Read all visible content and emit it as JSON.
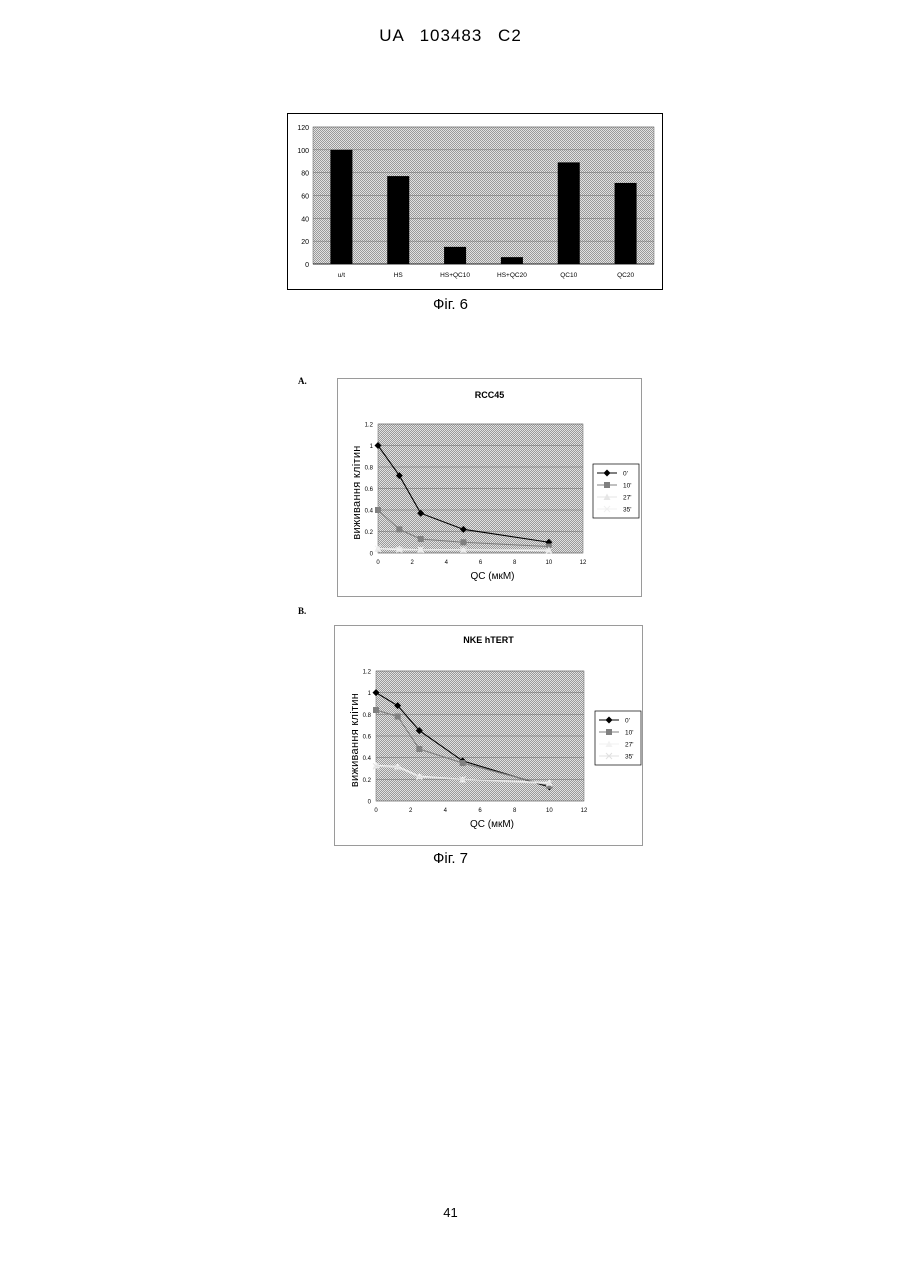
{
  "header": {
    "text": "UA   103483   C2"
  },
  "fig6": {
    "caption": "Фіг. 6"
  },
  "fig7": {
    "caption": "Фіг. 7",
    "panel_a_label": "A.",
    "panel_b_label": "B."
  },
  "footer": {
    "page_number": "41"
  },
  "chart_data": [
    {
      "type": "bar",
      "title": "",
      "xlabel": "",
      "ylabel": "",
      "categories": [
        "u/t",
        "HS",
        "HS+QC10",
        "HS+QC20",
        "QC10",
        "QC20"
      ],
      "values": [
        100,
        77,
        15,
        6,
        89,
        71
      ],
      "ylim": [
        0,
        120
      ],
      "yticks": [
        0,
        20,
        40,
        60,
        80,
        100,
        120
      ],
      "grid": true,
      "colors": {
        "bar": "#000000",
        "plot_bg": "#cfcfcf"
      }
    },
    {
      "type": "line",
      "title": "RCC45",
      "xlabel": "QC (мкМ)",
      "ylabel": "виживання клітин",
      "x": [
        0,
        1.25,
        2.5,
        5,
        10
      ],
      "xlim": [
        0,
        12
      ],
      "xticks": [
        0,
        2,
        4,
        6,
        8,
        10,
        12
      ],
      "ylim": [
        0,
        1.2
      ],
      "yticks": [
        0,
        0.2,
        0.4,
        0.6,
        0.8,
        1,
        1.2
      ],
      "grid": true,
      "legend_position": "right",
      "series": [
        {
          "name": "0'",
          "values": [
            1.0,
            0.72,
            0.37,
            0.22,
            0.1
          ],
          "color": "#000000",
          "marker": "diamond"
        },
        {
          "name": "10'",
          "values": [
            0.4,
            0.22,
            0.13,
            0.1,
            0.06
          ],
          "color": "#808080",
          "marker": "square"
        },
        {
          "name": "27'",
          "values": [
            0.04,
            0.04,
            0.03,
            0.03,
            0.03
          ],
          "color": "#e6e6e6",
          "marker": "triangle"
        },
        {
          "name": "35'",
          "values": [
            0.04,
            0.03,
            0.03,
            0.03,
            0.02
          ],
          "color": "#f0f0f0",
          "marker": "x"
        }
      ]
    },
    {
      "type": "line",
      "title": "NKE hTERT",
      "xlabel": "QC (мкМ)",
      "ylabel": "виживання клітин",
      "x": [
        0,
        1.25,
        2.5,
        5,
        10
      ],
      "xlim": [
        0,
        12
      ],
      "xticks": [
        0,
        2,
        4,
        6,
        8,
        10,
        12
      ],
      "ylim": [
        0,
        1.2
      ],
      "yticks": [
        0,
        0.2,
        0.4,
        0.6,
        0.8,
        1,
        1.2
      ],
      "grid": true,
      "legend_position": "right",
      "series": [
        {
          "name": "0'",
          "values": [
            1.0,
            0.88,
            0.65,
            0.37,
            0.13
          ],
          "color": "#000000",
          "marker": "diamond"
        },
        {
          "name": "10'",
          "values": [
            0.84,
            0.78,
            0.48,
            0.35,
            0.14
          ],
          "color": "#808080",
          "marker": "square"
        },
        {
          "name": "27'",
          "values": [
            0.33,
            0.32,
            0.23,
            0.2,
            0.17
          ],
          "color": "#f2f2f2",
          "marker": "triangle"
        },
        {
          "name": "35'",
          "values": [
            0.32,
            0.31,
            0.22,
            0.2,
            0.16
          ],
          "color": "#e0e0e0",
          "marker": "x"
        }
      ]
    }
  ]
}
